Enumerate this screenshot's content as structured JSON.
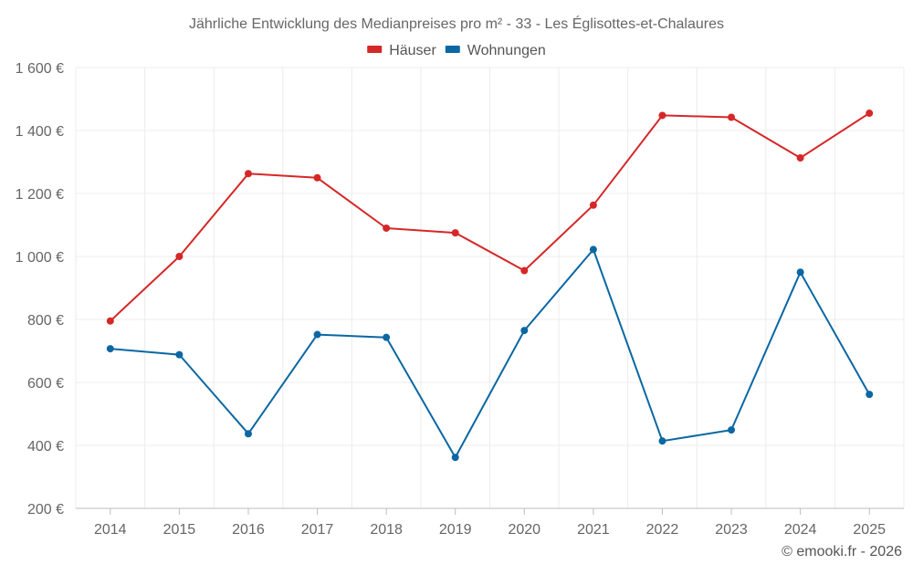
{
  "chart_data": {
    "type": "line",
    "title": "Jährliche Entwicklung des Medianpreises pro m² - 33 - Les Églisottes-et-Chalaures",
    "x": [
      "2014",
      "2015",
      "2016",
      "2017",
      "2018",
      "2019",
      "2020",
      "2021",
      "2022",
      "2023",
      "2024",
      "2025"
    ],
    "series": [
      {
        "name": "Häuser",
        "color": "#d62728",
        "values": [
          795,
          1000,
          1263,
          1250,
          1090,
          1075,
          955,
          1163,
          1448,
          1442,
          1313,
          1455
        ]
      },
      {
        "name": "Wohnungen",
        "color": "#0a67a3",
        "values": [
          707,
          688,
          437,
          752,
          743,
          362,
          765,
          1022,
          414,
          449,
          950,
          562
        ]
      }
    ],
    "ylim": [
      200,
      1600
    ],
    "yticks": [
      200,
      400,
      600,
      800,
      1000,
      1200,
      1400,
      1600
    ],
    "ytick_labels": [
      "200 €",
      "400 €",
      "600 €",
      "800 €",
      "1 000 €",
      "1 200 €",
      "1 400 €",
      "1 600 €"
    ],
    "xlabel": "",
    "ylabel": "",
    "grid": true,
    "legend_position": "top-center",
    "credit": "© emooki.fr - 2026"
  }
}
